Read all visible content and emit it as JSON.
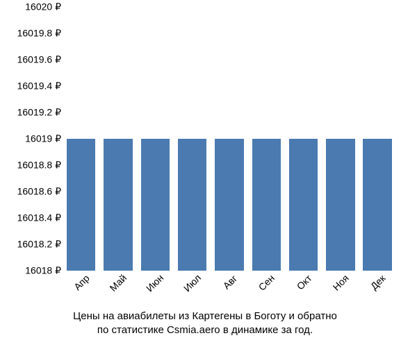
{
  "chart": {
    "type": "bar",
    "background_color": "#ffffff",
    "bar_color": "#4a7ab0",
    "text_color": "#000000",
    "bar_width_ratio": 0.78,
    "ylim": [
      16018,
      16020
    ],
    "y_ticks": [
      {
        "value": 16018,
        "label": "16018 ₽"
      },
      {
        "value": 16018.2,
        "label": "16018.2 ₽"
      },
      {
        "value": 16018.4,
        "label": "16018.4 ₽"
      },
      {
        "value": 16018.6,
        "label": "16018.6 ₽"
      },
      {
        "value": 16018.8,
        "label": "16018.8 ₽"
      },
      {
        "value": 16019,
        "label": "16019 ₽"
      },
      {
        "value": 16019.2,
        "label": "16019.2 ₽"
      },
      {
        "value": 16019.4,
        "label": "16019.4 ₽"
      },
      {
        "value": 16019.6,
        "label": "16019.6 ₽"
      },
      {
        "value": 16019.8,
        "label": "16019.8 ₽"
      },
      {
        "value": 16020,
        "label": "16020 ₽"
      }
    ],
    "series": [
      {
        "category": "Апр",
        "value": 16019
      },
      {
        "category": "Май",
        "value": 16019
      },
      {
        "category": "Июн",
        "value": 16019
      },
      {
        "category": "Июл",
        "value": 16019
      },
      {
        "category": "Авг",
        "value": 16019
      },
      {
        "category": "Сен",
        "value": 16019
      },
      {
        "category": "Окт",
        "value": 16019
      },
      {
        "category": "Ноя",
        "value": 16019
      },
      {
        "category": "Дек",
        "value": 16019
      }
    ],
    "caption_line1": "Цены на авиабилеты из Картегены в Боготу и обратно",
    "caption_line2": "по статистике Csmia.aero в динамике за год.",
    "axis_fontsize": 14,
    "caption_fontsize": 15,
    "x_label_rotation_deg": -45
  }
}
